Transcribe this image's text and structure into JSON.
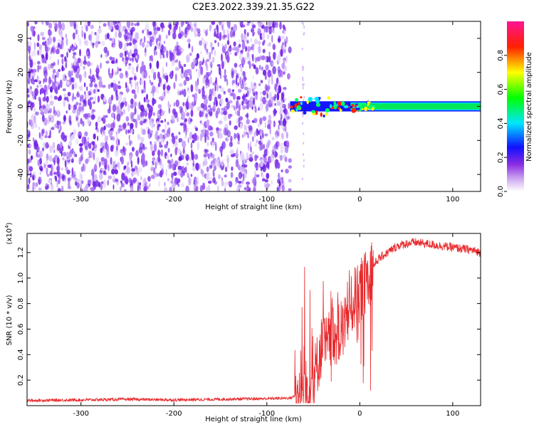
{
  "title": "C2E3.2022.339.21.35.G22",
  "chart_data": [
    {
      "type": "heatmap",
      "xlabel": "Height of straight line (km)",
      "ylabel": "Frequency (Hz)",
      "xlim": [
        -358,
        130
      ],
      "ylim": [
        -50,
        50
      ],
      "x_ticks": [
        -300,
        -200,
        -100,
        0,
        100
      ],
      "y_ticks": [
        -40,
        -20,
        0,
        20,
        40
      ],
      "colorbar": {
        "label": "Normalized spectral amplitude",
        "range": [
          0.0,
          1.0
        ],
        "ticks": [
          "0.0",
          "0.2",
          "0.4",
          "0.6",
          "0.8"
        ],
        "colors": [
          "#ffffff",
          "#8a2be2",
          "#0000ff",
          "#00e5ff",
          "#00ff00",
          "#ffff00",
          "#ff0000",
          "#ff1493"
        ]
      },
      "regions": [
        {
          "label": "noise",
          "x_range": [
            -358,
            -75
          ],
          "amplitude": 0.1
        },
        {
          "label": "signal-band",
          "x_range": [
            -75,
            130
          ],
          "freq_center": 0,
          "freq_halfwidth": 3,
          "amplitude": 0.5
        }
      ]
    },
    {
      "type": "line",
      "xlabel": "Height of straight line (km)",
      "ylabel": "SNR (10 * v/v)",
      "y_scale_label": "(x10",
      "y_scale_exp": "4",
      "xlim": [
        -358,
        130
      ],
      "ylim": [
        0.0,
        1.35
      ],
      "x_ticks": [
        -300,
        -200,
        -100,
        0,
        100
      ],
      "y_ticks": [
        "0.2",
        "0.4",
        "0.6",
        "0.8",
        "1.0",
        "1.2"
      ],
      "series": [
        {
          "color": "#e8282b",
          "x": [
            -358,
            -300,
            -250,
            -200,
            -150,
            -100,
            -75,
            -60,
            -50,
            -45,
            -40,
            -35,
            -30,
            -25,
            -20,
            -15,
            -10,
            -5,
            0,
            5,
            10,
            15,
            20,
            30,
            40,
            50,
            60,
            70,
            80,
            90,
            100,
            110,
            120,
            130
          ],
          "values": [
            0.04,
            0.045,
            0.05,
            0.045,
            0.05,
            0.055,
            0.06,
            0.1,
            0.2,
            0.35,
            0.5,
            0.45,
            0.6,
            0.55,
            0.55,
            0.7,
            0.75,
            0.85,
            0.9,
            0.95,
            1.05,
            1.1,
            1.15,
            1.2,
            1.25,
            1.27,
            1.28,
            1.27,
            1.26,
            1.25,
            1.24,
            1.23,
            1.22,
            1.2
          ]
        }
      ]
    }
  ]
}
